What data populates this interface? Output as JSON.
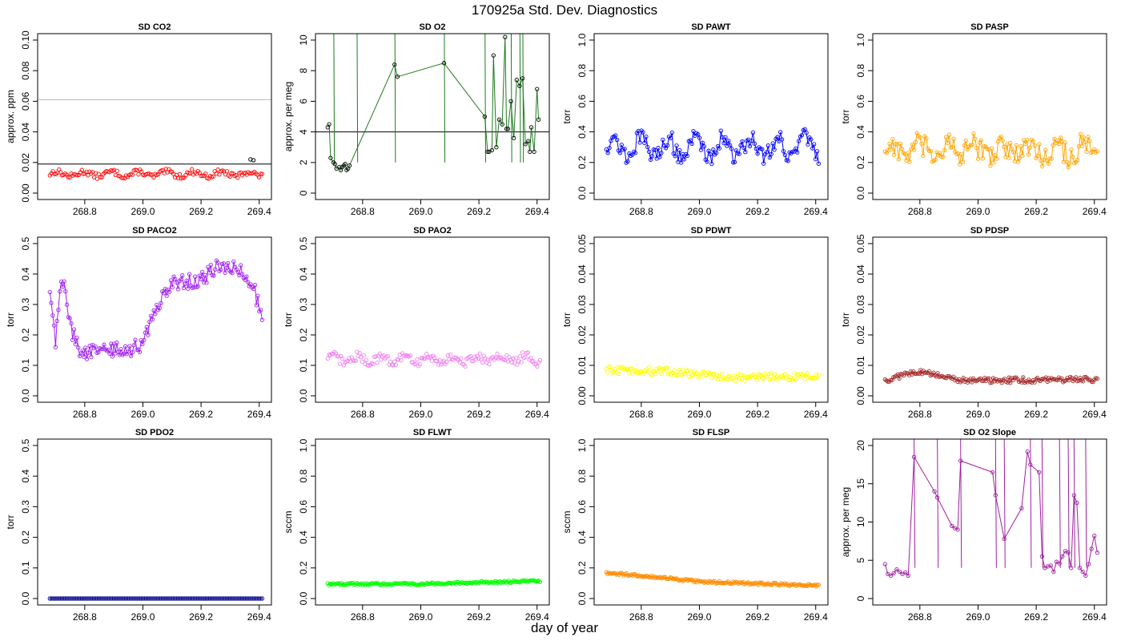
{
  "figure": {
    "title": "170925a   Std. Dev. Diagnostics",
    "xlabel": "day of year"
  },
  "chart_data": [
    {
      "type": "scatter",
      "title": "SD CO2",
      "ylabel": "approx. ppm",
      "xlim": [
        268.66,
        269.42
      ],
      "ylim": [
        0,
        0.1
      ],
      "yticks": [
        "0.00",
        "0.02",
        "0.04",
        "0.06",
        "0.08",
        "0.10"
      ],
      "xticks": [
        "268.8",
        "269.0",
        "269.2",
        "269.4"
      ],
      "color": "#ff0000",
      "connected": false,
      "hlines": [
        {
          "y": 0.019,
          "color": "#000000"
        },
        {
          "y": 0.061,
          "color": "#bbbbbb"
        }
      ],
      "series": {
        "x0": 268.68,
        "x1": 269.41,
        "n": 140,
        "base": 0.0125,
        "amp": 0.0015,
        "noise": 0.0018
      },
      "highlight": {
        "x": [
          269.37,
          269.38
        ],
        "y": [
          0.022,
          0.0215
        ],
        "color": "#000000"
      }
    },
    {
      "type": "line",
      "title": "SD O2",
      "ylabel": "approx. per meg",
      "xlim": [
        268.66,
        269.42
      ],
      "ylim": [
        0,
        10
      ],
      "yticks": [
        "0",
        "2",
        "4",
        "6",
        "8",
        "10"
      ],
      "xticks": [
        "268.8",
        "269.0",
        "269.2",
        "269.4"
      ],
      "color": "#1e7a1e",
      "pointColor": "#000000",
      "hlines": [
        {
          "y": 4.0,
          "color": "#000000"
        }
      ],
      "points": {
        "x": [
          268.68,
          268.685,
          268.69,
          268.7,
          268.705,
          268.71,
          268.72,
          268.725,
          268.73,
          268.735,
          268.74,
          268.745,
          268.75,
          268.755,
          268.91,
          268.92,
          269.08,
          269.22,
          269.23,
          269.235,
          269.245,
          269.25,
          269.26,
          269.27,
          269.28,
          269.29,
          269.295,
          269.3,
          269.31,
          269.32,
          269.33,
          269.34,
          269.35,
          269.36,
          269.37,
          269.375,
          269.38,
          269.39,
          269.4,
          269.405
        ],
        "y": [
          4.3,
          4.5,
          2.3,
          2.0,
          1.9,
          1.6,
          1.7,
          1.5,
          1.7,
          1.8,
          1.9,
          1.5,
          1.6,
          1.8,
          8.4,
          7.6,
          8.5,
          5.0,
          2.7,
          2.7,
          2.8,
          9.0,
          3.0,
          4.8,
          4.5,
          10.2,
          4.2,
          4.2,
          6.0,
          3.6,
          7.4,
          7.0,
          7.5,
          3.2,
          3.4,
          2.7,
          4.3,
          2.7,
          6.8,
          4.8
        ]
      },
      "breaks": [
        [
          268.7,
          15
        ],
        [
          268.78,
          15
        ],
        [
          268.91,
          15
        ],
        [
          269.08,
          15
        ],
        [
          269.22,
          15
        ],
        [
          269.31,
          15
        ],
        [
          269.34,
          15
        ],
        [
          269.35,
          15
        ]
      ]
    },
    {
      "type": "line",
      "title": "SD PAWT",
      "ylabel": "torr",
      "xlim": [
        268.66,
        269.42
      ],
      "ylim": [
        0,
        1
      ],
      "yticks": [
        "0.0",
        "0.2",
        "0.4",
        "0.6",
        "0.8",
        "1.0"
      ],
      "xticks": [
        "268.8",
        "269.0",
        "269.2",
        "269.4"
      ],
      "color": "#0000ff",
      "connected": true,
      "series": {
        "x0": 268.68,
        "x1": 269.41,
        "n": 140,
        "base": 0.3,
        "amp": 0.06,
        "noise": 0.06
      }
    },
    {
      "type": "line",
      "title": "SD PASP",
      "ylabel": "torr",
      "xlim": [
        268.66,
        269.42
      ],
      "ylim": [
        0,
        1
      ],
      "yticks": [
        "0.0",
        "0.2",
        "0.4",
        "0.6",
        "0.8",
        "1.0"
      ],
      "xticks": [
        "268.8",
        "269.0",
        "269.2",
        "269.4"
      ],
      "color": "#ffa500",
      "connected": true,
      "series": {
        "x0": 268.68,
        "x1": 269.41,
        "n": 140,
        "base": 0.28,
        "amp": 0.04,
        "noise": 0.08
      }
    },
    {
      "type": "line",
      "title": "SD PACO2",
      "ylabel": "torr",
      "xlim": [
        268.66,
        269.42
      ],
      "ylim": [
        0,
        0.5
      ],
      "yticks": [
        "0.0",
        "0.1",
        "0.2",
        "0.3",
        "0.4",
        "0.5"
      ],
      "xticks": [
        "268.8",
        "269.0",
        "269.2",
        "269.4"
      ],
      "color": "#a020f0",
      "connected": true,
      "profile": [
        [
          268.68,
          0.34
        ],
        [
          268.7,
          0.18
        ],
        [
          268.72,
          0.4
        ],
        [
          268.74,
          0.3
        ],
        [
          268.76,
          0.2
        ],
        [
          268.79,
          0.14
        ],
        [
          268.85,
          0.15
        ],
        [
          268.95,
          0.15
        ],
        [
          269.0,
          0.17
        ],
        [
          269.05,
          0.3
        ],
        [
          269.1,
          0.37
        ],
        [
          269.2,
          0.38
        ],
        [
          269.25,
          0.42
        ],
        [
          269.33,
          0.42
        ],
        [
          269.38,
          0.36
        ],
        [
          269.41,
          0.25
        ]
      ],
      "series": {
        "x0": 268.68,
        "x1": 269.41,
        "n": 150,
        "noise": 0.025
      }
    },
    {
      "type": "scatter",
      "title": "SD PAO2",
      "ylabel": "torr",
      "xlim": [
        268.66,
        269.42
      ],
      "ylim": [
        0,
        0.5
      ],
      "yticks": [
        "0.0",
        "0.1",
        "0.2",
        "0.3",
        "0.4",
        "0.5"
      ],
      "xticks": [
        "268.8",
        "269.0",
        "269.2",
        "269.4"
      ],
      "color": "#ee82ee",
      "connected": false,
      "series": {
        "x0": 268.68,
        "x1": 269.41,
        "n": 160,
        "base": 0.12,
        "amp": 0.01,
        "noise": 0.015
      }
    },
    {
      "type": "scatter",
      "title": "SD PDWT",
      "ylabel": "torr",
      "xlim": [
        268.66,
        269.42
      ],
      "ylim": [
        0,
        0.05
      ],
      "yticks": [
        "0.00",
        "0.01",
        "0.02",
        "0.03",
        "0.04",
        "0.05"
      ],
      "xticks": [
        "268.8",
        "269.0",
        "269.2",
        "269.4"
      ],
      "color": "#ffff00",
      "connected": false,
      "profile": [
        [
          268.68,
          0.0085
        ],
        [
          268.9,
          0.008
        ],
        [
          269.0,
          0.007
        ],
        [
          269.1,
          0.006
        ],
        [
          269.41,
          0.0065
        ]
      ],
      "series": {
        "x0": 268.68,
        "x1": 269.41,
        "n": 170,
        "noise": 0.0012
      }
    },
    {
      "type": "scatter",
      "title": "SD PDSP",
      "ylabel": "torr",
      "xlim": [
        268.66,
        269.42
      ],
      "ylim": [
        0,
        0.05
      ],
      "yticks": [
        "0.00",
        "0.01",
        "0.02",
        "0.03",
        "0.04",
        "0.05"
      ],
      "xticks": [
        "268.8",
        "269.0",
        "269.2",
        "269.4"
      ],
      "color": "#a52a2a",
      "connected": true,
      "profile": [
        [
          268.68,
          0.005
        ],
        [
          268.78,
          0.008
        ],
        [
          268.85,
          0.007
        ],
        [
          268.95,
          0.005
        ],
        [
          269.41,
          0.0055
        ]
      ],
      "series": {
        "x0": 268.68,
        "x1": 269.41,
        "n": 150,
        "noise": 0.0009
      }
    },
    {
      "type": "line",
      "title": "SD PDO2",
      "ylabel": "torr",
      "xlim": [
        268.66,
        269.42
      ],
      "ylim": [
        0,
        0.5
      ],
      "yticks": [
        "0.0",
        "0.1",
        "0.2",
        "0.3",
        "0.4",
        "0.5"
      ],
      "xticks": [
        "268.8",
        "269.0",
        "269.2",
        "269.4"
      ],
      "color": "#00008b",
      "connected": true,
      "series": {
        "x0": 268.68,
        "x1": 269.41,
        "n": 140,
        "base": 0.0,
        "amp": 0,
        "noise": 0
      }
    },
    {
      "type": "scatter",
      "title": "SD FLWT",
      "ylabel": "sccm",
      "xlim": [
        268.66,
        269.42
      ],
      "ylim": [
        0,
        1
      ],
      "yticks": [
        "0.0",
        "0.2",
        "0.4",
        "0.6",
        "0.8",
        "1.0"
      ],
      "xticks": [
        "268.8",
        "269.0",
        "269.2",
        "269.4"
      ],
      "color": "#00ff00",
      "connected": true,
      "profile": [
        [
          268.68,
          0.095
        ],
        [
          269.0,
          0.095
        ],
        [
          269.41,
          0.115
        ]
      ],
      "series": {
        "x0": 268.68,
        "x1": 269.41,
        "n": 170,
        "noise": 0.007
      }
    },
    {
      "type": "scatter",
      "title": "SD FLSP",
      "ylabel": "sccm",
      "xlim": [
        268.66,
        269.42
      ],
      "ylim": [
        0,
        1
      ],
      "yticks": [
        "0.0",
        "0.2",
        "0.4",
        "0.6",
        "0.8",
        "1.0"
      ],
      "xticks": [
        "268.8",
        "269.0",
        "269.2",
        "269.4"
      ],
      "color": "#ff8c00",
      "connected": true,
      "profile": [
        [
          268.68,
          0.165
        ],
        [
          268.8,
          0.15
        ],
        [
          269.0,
          0.11
        ],
        [
          269.41,
          0.085
        ]
      ],
      "series": {
        "x0": 268.68,
        "x1": 269.41,
        "n": 170,
        "noise": 0.008
      }
    },
    {
      "type": "line",
      "title": "SD O2 Slope",
      "ylabel": "approx. per meg",
      "xlim": [
        268.66,
        269.42
      ],
      "ylim": [
        0,
        20
      ],
      "yticks": [
        "0",
        "5",
        "10",
        "15",
        "20"
      ],
      "xticks": [
        "268.8",
        "269.0",
        "269.2",
        "269.4"
      ],
      "color": "#a020a0",
      "connected": true,
      "points": {
        "x": [
          268.68,
          268.69,
          268.7,
          268.71,
          268.72,
          268.73,
          268.74,
          268.75,
          268.76,
          268.78,
          268.85,
          268.86,
          268.91,
          268.92,
          268.93,
          268.94,
          269.05,
          269.06,
          269.09,
          269.15,
          269.17,
          269.18,
          269.21,
          269.22,
          269.23,
          269.24,
          269.25,
          269.26,
          269.27,
          269.28,
          269.29,
          269.3,
          269.31,
          269.32,
          269.33,
          269.34,
          269.35,
          269.36,
          269.37,
          269.38,
          269.39,
          269.4,
          269.41
        ],
        "y": [
          4.5,
          3.2,
          3.0,
          3.3,
          3.8,
          3.5,
          3.2,
          3.4,
          3.0,
          18.5,
          14.0,
          13.2,
          9.5,
          9.2,
          9.0,
          18.0,
          16.5,
          13.5,
          7.8,
          11.8,
          19.2,
          17.5,
          16.5,
          5.5,
          4.0,
          4.2,
          4.3,
          3.5,
          4.8,
          4.6,
          5.5,
          6.2,
          6.0,
          4.0,
          13.5,
          12.5,
          4.0,
          3.5,
          3.0,
          4.5,
          6.5,
          8.2,
          6.0
        ]
      },
      "breaks": [
        [
          268.78,
          21
        ],
        [
          268.86,
          21
        ],
        [
          268.94,
          21
        ],
        [
          269.06,
          21
        ],
        [
          269.09,
          21
        ],
        [
          269.18,
          21
        ],
        [
          269.22,
          21
        ],
        [
          269.28,
          21
        ],
        [
          269.31,
          21
        ],
        [
          269.33,
          21
        ],
        [
          269.37,
          21
        ]
      ]
    }
  ]
}
